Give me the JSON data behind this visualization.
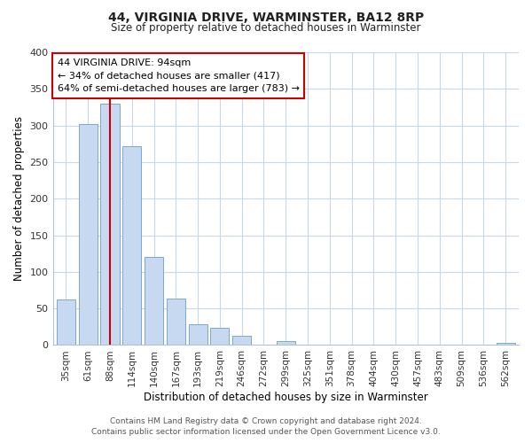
{
  "title": "44, VIRGINIA DRIVE, WARMINSTER, BA12 8RP",
  "subtitle": "Size of property relative to detached houses in Warminster",
  "xlabel": "Distribution of detached houses by size in Warminster",
  "ylabel": "Number of detached properties",
  "categories": [
    "35sqm",
    "61sqm",
    "88sqm",
    "114sqm",
    "140sqm",
    "167sqm",
    "193sqm",
    "219sqm",
    "246sqm",
    "272sqm",
    "299sqm",
    "325sqm",
    "351sqm",
    "378sqm",
    "404sqm",
    "430sqm",
    "457sqm",
    "483sqm",
    "509sqm",
    "536sqm",
    "562sqm"
  ],
  "values": [
    62,
    302,
    330,
    272,
    120,
    64,
    29,
    24,
    13,
    0,
    5,
    0,
    0,
    0,
    0,
    0,
    0,
    0,
    0,
    0,
    3
  ],
  "bar_color": "#c6d9f0",
  "bar_edge_color": "#7ba7d4",
  "red_line_x": 2,
  "annotation_line1": "44 VIRGINIA DRIVE: 94sqm",
  "annotation_line2": "← 34% of detached houses are smaller (417)",
  "annotation_line3": "64% of semi-detached houses are larger (783) →",
  "annotation_box_color": "#ffffff",
  "annotation_box_edge": "#cc0000",
  "ylim": [
    0,
    400
  ],
  "yticks": [
    0,
    50,
    100,
    150,
    200,
    250,
    300,
    350,
    400
  ],
  "footer_line1": "Contains HM Land Registry data © Crown copyright and database right 2024.",
  "footer_line2": "Contains public sector information licensed under the Open Government Licence v3.0.",
  "bg_color": "#ffffff",
  "grid_color": "#c8d8e8",
  "spine_color": "#b0c4d8"
}
